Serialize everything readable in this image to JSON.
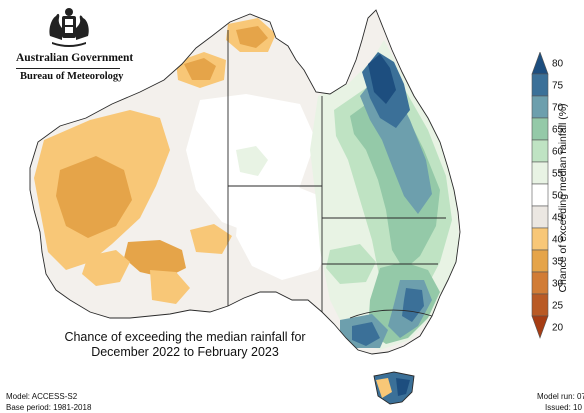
{
  "header": {
    "government": "Australian Government",
    "bureau": "Bureau of Meteorology"
  },
  "caption": {
    "line1": "Chance of exceeding the median rainfall for",
    "line2": "December 2022 to February 2023"
  },
  "legend": {
    "title": "Chance of exceeding median rainfall (%)",
    "ticks": [
      "80",
      "75",
      "70",
      "65",
      "60",
      "55",
      "50",
      "45",
      "40",
      "35",
      "30",
      "25",
      "20"
    ],
    "colors": [
      "#1d4e7f",
      "#3b7098",
      "#6d9fad",
      "#94c9a8",
      "#bfe3c3",
      "#e8f3e4",
      "#ffffff",
      "#ebe7e2",
      "#f8c777",
      "#e5a449",
      "#d17c36",
      "#b95a25",
      "#a63d14"
    ]
  },
  "footer": {
    "model": "Model: ACCESS-S2",
    "base_period": "Base period: 1981-2018",
    "model_run": "Model run: 07",
    "issued": "Issued: 10"
  },
  "palette": {
    "ocean": "#ffffff",
    "land_neutral": "#f3f0ec",
    "land_white": "#ffffff",
    "dry_light": "#f8c777",
    "dry_mid": "#e5a449",
    "dry_strong": "#d17c36",
    "wet_light": "#e8f3e4",
    "wet_mid": "#bfe3c3",
    "wet_strong": "#94c9a8",
    "wet_teal": "#6d9fad",
    "wet_blue": "#3b7098",
    "wet_dark": "#1d4e7f",
    "border": "#2a2a2a"
  }
}
